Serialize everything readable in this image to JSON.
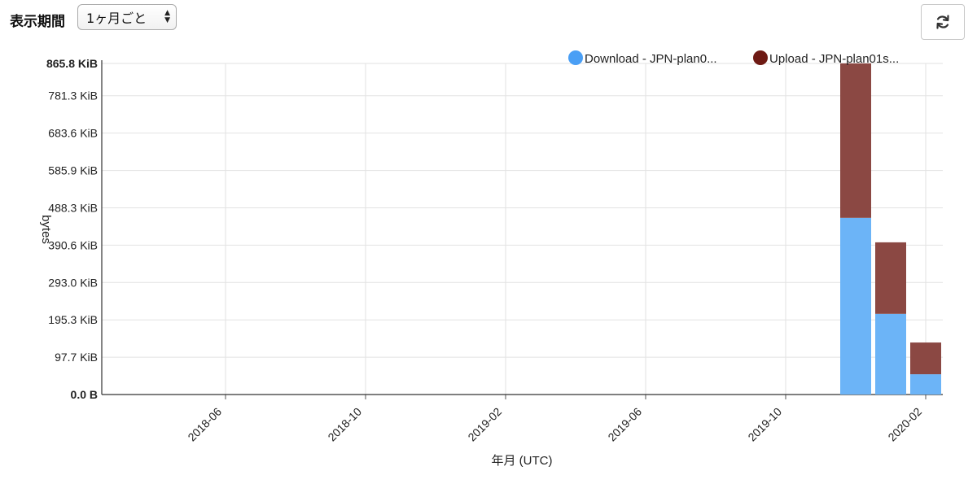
{
  "controls": {
    "period_label": "表示期間",
    "period_value": "1ヶ月ごと",
    "refresh_icon": "refresh-icon"
  },
  "chart_data": {
    "type": "bar",
    "stacked": true,
    "xlabel": "年月 (UTC)",
    "ylabel": "bytes",
    "y_unit": "KiB",
    "y_max_label": "865.8 KiB",
    "y_ticks": [
      "0.0 B",
      "97.7 KiB",
      "195.3 KiB",
      "293.0 KiB",
      "390.6 KiB",
      "488.3 KiB",
      "585.9 KiB",
      "683.6 KiB",
      "781.3 KiB",
      "865.8 KiB"
    ],
    "y_tick_values": [
      0,
      97.7,
      195.3,
      293.0,
      390.6,
      488.3,
      585.9,
      683.6,
      781.3,
      865.8
    ],
    "ylim": [
      0,
      865.8
    ],
    "x_tick_labels": [
      "2018-06",
      "2018-10",
      "2019-02",
      "2019-06",
      "2019-10",
      "2020-02"
    ],
    "grid": true,
    "legend_position": "top-right",
    "categories": [
      "2019-12",
      "2020-01",
      "2020-02"
    ],
    "series": [
      {
        "name": "Download - JPN-plan0...",
        "color": "#6cb4f7",
        "legend_color": "#4a9ff5",
        "values": [
          462,
          211,
          53
        ]
      },
      {
        "name": "Upload - JPN-plan01s...",
        "color": "#8b4843",
        "legend_color": "#6e1a14",
        "values": [
          404,
          187,
          83
        ]
      }
    ]
  }
}
